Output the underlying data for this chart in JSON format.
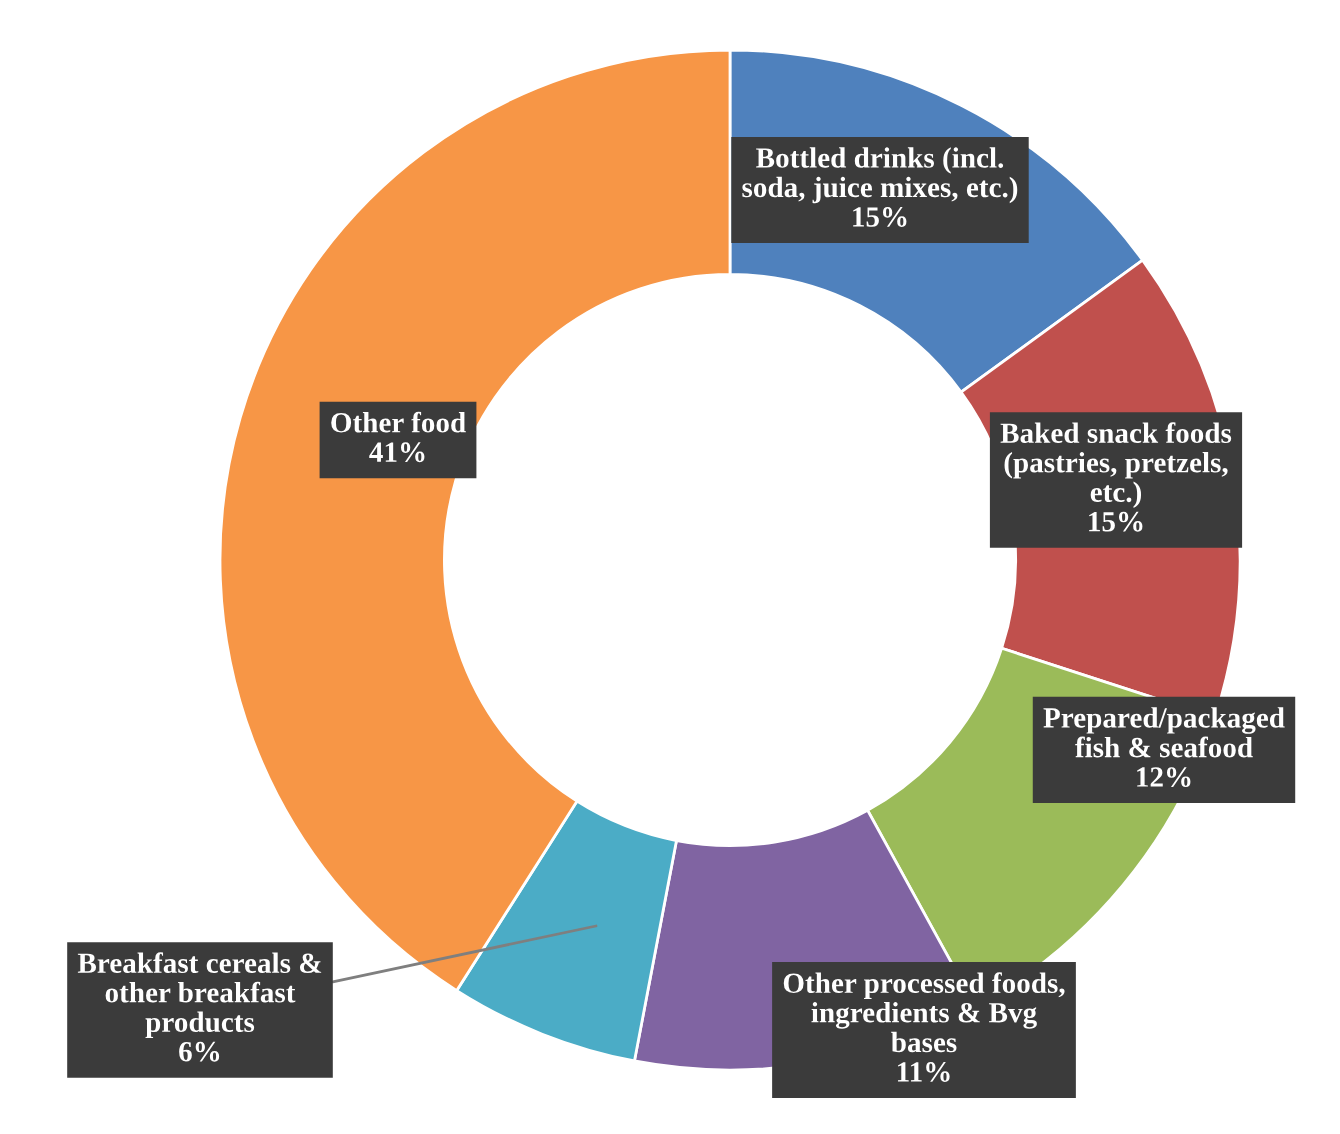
{
  "chart_data": {
    "type": "donut",
    "categories": [
      "Bottled drinks (incl.\nsoda, juice mixes, etc.)",
      "Baked snack foods\n(pastries, pretzels,\netc.)",
      "Prepared/packaged\nfish & seafood",
      "Other processed foods,\ningredients & Bvg\nbases",
      "Breakfast cereals &\nother breakfast\nproducts",
      "Other food"
    ],
    "values": [
      15,
      15,
      12,
      11,
      6,
      41
    ],
    "value_labels": [
      "15%",
      "15%",
      "12%",
      "11%",
      "6%",
      "41%"
    ],
    "colors": [
      "#4f81bd",
      "#c0504d",
      "#9bbb59",
      "#8064a2",
      "#4bacc6",
      "#f79646"
    ]
  }
}
